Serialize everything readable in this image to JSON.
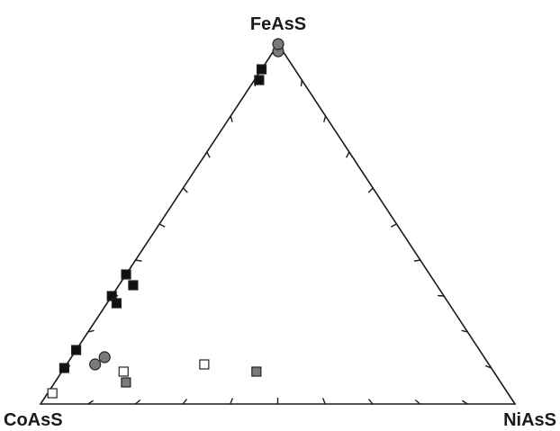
{
  "chart_data": {
    "type": "scatter",
    "subtype": "ternary",
    "vertices": {
      "top": "FeAsS",
      "left": "CoAsS",
      "right": "NiAsS"
    },
    "ticks_per_side": 10,
    "grid": false,
    "colors": {
      "black": "#111111",
      "gray": "#7a7a7a",
      "white": "#ffffff",
      "outline": "#222222"
    },
    "points": [
      {
        "marker": "circle",
        "fill": "gray",
        "FeAsS": 0.98,
        "CoAsS": 0.01,
        "NiAsS": 0.01
      },
      {
        "marker": "circle",
        "fill": "gray",
        "FeAsS": 1.0,
        "CoAsS": 0.0,
        "NiAsS": 0.0
      },
      {
        "marker": "square",
        "fill": "black",
        "FeAsS": 0.93,
        "CoAsS": 0.07,
        "NiAsS": 0.0
      },
      {
        "marker": "square",
        "fill": "black",
        "FeAsS": 0.9,
        "CoAsS": 0.09,
        "NiAsS": 0.01
      },
      {
        "marker": "square",
        "fill": "black",
        "FeAsS": 0.36,
        "CoAsS": 0.64,
        "NiAsS": 0.0
      },
      {
        "marker": "square",
        "fill": "black",
        "FeAsS": 0.33,
        "CoAsS": 0.64,
        "NiAsS": 0.03
      },
      {
        "marker": "square",
        "fill": "black",
        "FeAsS": 0.3,
        "CoAsS": 0.7,
        "NiAsS": 0.0
      },
      {
        "marker": "square",
        "fill": "black",
        "FeAsS": 0.28,
        "CoAsS": 0.7,
        "NiAsS": 0.02
      },
      {
        "marker": "square",
        "fill": "black",
        "FeAsS": 0.15,
        "CoAsS": 0.85,
        "NiAsS": 0.0
      },
      {
        "marker": "square",
        "fill": "black",
        "FeAsS": 0.1,
        "CoAsS": 0.9,
        "NiAsS": 0.0
      },
      {
        "marker": "circle",
        "fill": "gray",
        "FeAsS": 0.13,
        "CoAsS": 0.8,
        "NiAsS": 0.07
      },
      {
        "marker": "circle",
        "fill": "gray",
        "FeAsS": 0.11,
        "CoAsS": 0.83,
        "NiAsS": 0.06
      },
      {
        "marker": "square",
        "fill": "white",
        "FeAsS": 0.09,
        "CoAsS": 0.78,
        "NiAsS": 0.13
      },
      {
        "marker": "square",
        "fill": "gray",
        "FeAsS": 0.06,
        "CoAsS": 0.79,
        "NiAsS": 0.15
      },
      {
        "marker": "square",
        "fill": "white",
        "FeAsS": 0.11,
        "CoAsS": 0.6,
        "NiAsS": 0.29
      },
      {
        "marker": "square",
        "fill": "gray",
        "FeAsS": 0.09,
        "CoAsS": 0.5,
        "NiAsS": 0.41
      },
      {
        "marker": "square",
        "fill": "white",
        "FeAsS": 0.03,
        "CoAsS": 0.96,
        "NiAsS": 0.01
      }
    ]
  }
}
